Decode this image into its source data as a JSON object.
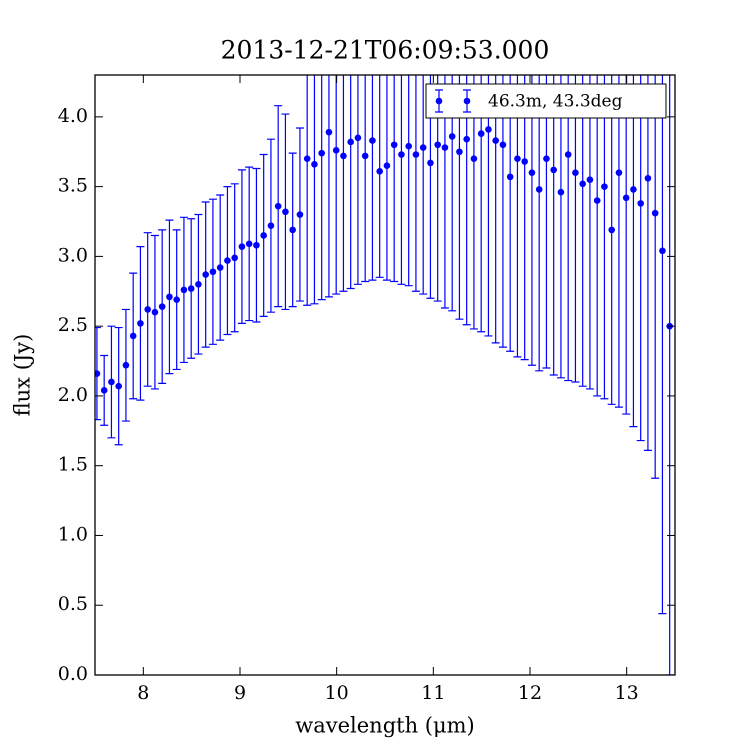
{
  "chart_data": {
    "type": "errorbar",
    "title": "2013-12-21T06:09:53.000",
    "x_label": "wavelength (μm)",
    "y_label": "flux (Jy)",
    "xlim": [
      7.5,
      13.5
    ],
    "ylim": [
      0,
      4.3
    ],
    "xticks": [
      8,
      9,
      10,
      11,
      12,
      13
    ],
    "yticks": [
      {
        "value": 0,
        "label": "0.0"
      },
      {
        "value": 0.5,
        "label": "0.5"
      },
      {
        "value": 1,
        "label": "1.0"
      },
      {
        "value": 1.5,
        "label": "1.5"
      },
      {
        "value": 2,
        "label": "2.0"
      },
      {
        "value": 2.5,
        "label": "2.5"
      },
      {
        "value": 3,
        "label": "3.0"
      },
      {
        "value": 3.5,
        "label": "3.5"
      },
      {
        "value": 4,
        "label": "4.0"
      }
    ],
    "legend": "upper right",
    "x": [
      7.52,
      7.595,
      7.67,
      7.745,
      7.82,
      7.895,
      7.97,
      8.045,
      8.12,
      8.195,
      8.27,
      8.345,
      8.42,
      8.495,
      8.57,
      8.645,
      8.72,
      8.795,
      8.87,
      8.945,
      9.02,
      9.095,
      9.17,
      9.245,
      9.32,
      9.395,
      9.47,
      9.545,
      9.62,
      9.695,
      9.77,
      9.845,
      9.92,
      9.995,
      10.07,
      10.145,
      10.22,
      10.295,
      10.37,
      10.445,
      10.52,
      10.595,
      10.67,
      10.745,
      10.82,
      10.895,
      10.97,
      11.045,
      11.12,
      11.195,
      11.27,
      11.345,
      11.42,
      11.495,
      11.57,
      11.645,
      11.72,
      11.795,
      11.87,
      11.945,
      12.02,
      12.095,
      12.17,
      12.245,
      12.32,
      12.395,
      12.47,
      12.545,
      12.62,
      12.695,
      12.77,
      12.845,
      12.92,
      12.995,
      13.07,
      13.145,
      13.22,
      13.295,
      13.37,
      13.445
    ],
    "series": [
      {
        "name": "46.3m, 43.3deg",
        "color": "#0000ff",
        "values": [
          2.16,
          2.04,
          2.1,
          2.07,
          2.22,
          2.43,
          2.52,
          2.62,
          2.6,
          2.64,
          2.71,
          2.69,
          2.76,
          2.77,
          2.8,
          2.87,
          2.89,
          2.92,
          2.97,
          2.99,
          3.07,
          3.09,
          3.08,
          3.15,
          3.22,
          3.36,
          3.32,
          3.19,
          3.3,
          3.7,
          3.66,
          3.74,
          3.89,
          3.76,
          3.72,
          3.82,
          3.85,
          3.72,
          3.83,
          3.61,
          3.65,
          3.8,
          3.73,
          3.79,
          3.73,
          3.78,
          3.67,
          3.8,
          3.78,
          3.86,
          3.75,
          3.84,
          3.7,
          3.88,
          3.91,
          3.83,
          3.8,
          3.57,
          3.7,
          3.68,
          3.6,
          3.48,
          3.7,
          3.62,
          3.46,
          3.73,
          3.6,
          3.52,
          3.55,
          3.4,
          3.5,
          3.19,
          3.6,
          3.42,
          3.48,
          3.38,
          3.56,
          3.31,
          3.04,
          2.5
        ],
        "errors": [
          0.33,
          0.25,
          0.4,
          0.42,
          0.4,
          0.45,
          0.55,
          0.55,
          0.55,
          0.55,
          0.55,
          0.5,
          0.52,
          0.5,
          0.5,
          0.52,
          0.52,
          0.52,
          0.53,
          0.53,
          0.55,
          0.55,
          0.55,
          0.58,
          0.62,
          0.72,
          0.7,
          0.55,
          0.62,
          1.05,
          1.0,
          1.05,
          1.18,
          1.03,
          0.97,
          1.05,
          1.05,
          0.9,
          1.0,
          0.76,
          0.82,
          0.98,
          0.93,
          1.0,
          0.98,
          1.05,
          0.97,
          1.12,
          1.15,
          1.25,
          1.2,
          1.33,
          1.22,
          1.42,
          1.48,
          1.45,
          1.45,
          1.25,
          1.42,
          1.42,
          1.38,
          1.3,
          1.5,
          1.47,
          1.33,
          1.62,
          1.5,
          1.45,
          1.5,
          1.4,
          1.52,
          1.25,
          1.68,
          1.55,
          1.7,
          1.7,
          1.95,
          1.9,
          2.6,
          2.5
        ]
      }
    ]
  }
}
